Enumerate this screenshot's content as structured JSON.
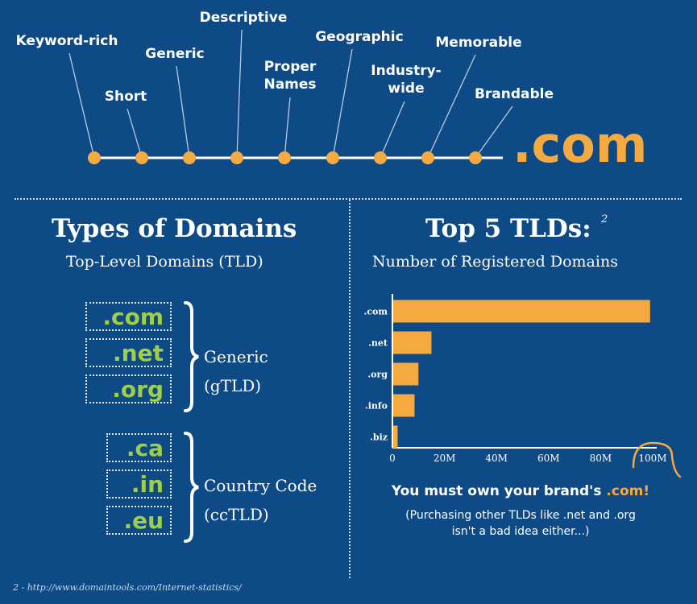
{
  "timeline": {
    "labels": [
      "Keyword-rich",
      "Short",
      "Generic",
      "Descriptive",
      "Proper Names",
      "Geographic",
      "Industry-wide",
      "Memorable",
      "Brandable"
    ],
    "target": ".com",
    "colors": {
      "dot": "#f4aa41",
      "line": "#ffffff",
      "connector": "#b8cbe0"
    }
  },
  "types_section": {
    "title": "Types of Domains",
    "subtitle": "Top-Level Domains (TLD)",
    "generic": {
      "items": [
        ".com",
        ".net",
        ".org"
      ],
      "label_line1": "Generic",
      "label_line2": "(gTLD)"
    },
    "country": {
      "items": [
        ".ca",
        ".in",
        ".eu"
      ],
      "label_line1": "Country Code",
      "label_line2": "(ccTLD)"
    },
    "colors": {
      "tld_text": "#9fcf4a"
    }
  },
  "top5_section": {
    "title": "Top 5 TLDs:",
    "footnote_marker": "2",
    "subtitle": "Number of Registered Domains",
    "callout_prefix": "You must own your brand's ",
    "callout_accent": ".com!",
    "note_line1": "(Purchasing other TLDs like .net and .org",
    "note_line2": "isn't a bad idea either...)"
  },
  "chart_data": {
    "type": "bar",
    "orientation": "horizontal",
    "categories": [
      ".com",
      ".net",
      ".org",
      ".info",
      ".biz"
    ],
    "values": [
      99,
      15,
      10,
      8.5,
      2
    ],
    "xlim": [
      0,
      100
    ],
    "xticks": [
      "0",
      "20M",
      "40M",
      "60M",
      "80M",
      "100M"
    ],
    "highlight_tick": "100M",
    "colors": {
      "bar": "#f4aa41",
      "axis": "#ffffff"
    }
  },
  "footer": {
    "source": "2 - http://www.domaintools.com/Internet-statistics/"
  },
  "colors": {
    "background": "#0d4a86",
    "accent": "#f4aa41"
  }
}
